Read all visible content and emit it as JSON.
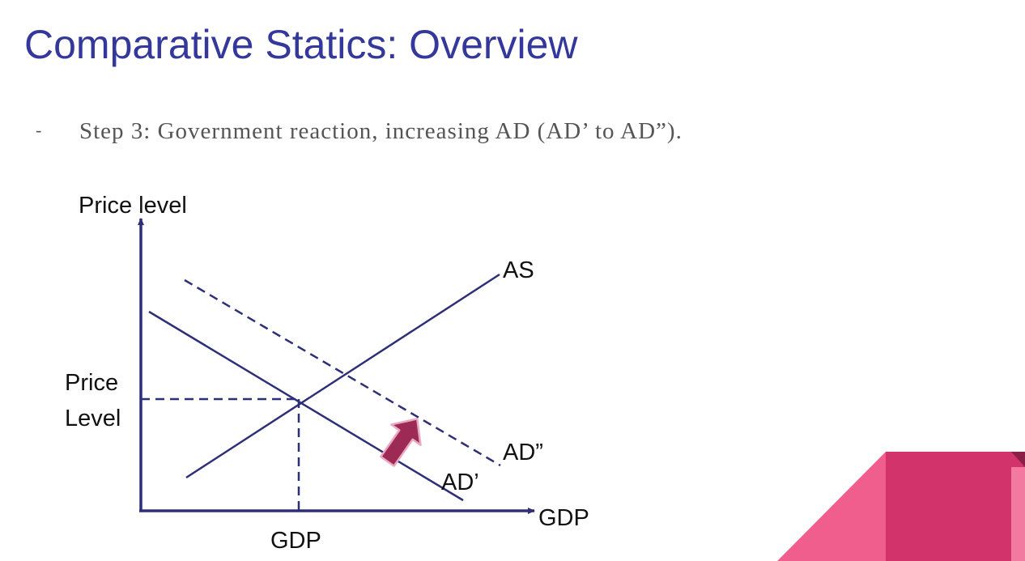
{
  "slide": {
    "title": "Comparative Statics: Overview",
    "bullet_marker": "-",
    "bullet_text": "Step 3: Government reaction, increasing AD (AD’ to AD”)."
  },
  "diagram": {
    "y_axis_label": "Price level",
    "x_axis_label": "GDP",
    "price_level_label_line1": "Price",
    "price_level_label_line2": "Level",
    "gdp_tick_label": "GDP",
    "curves": {
      "as_label": "AS",
      "ad_prime_label": "AD’",
      "ad_double_prime_label": "AD”"
    },
    "colors": {
      "axis_and_curves": "#2d2f78",
      "shift_arrow": "#9c2a55",
      "title": "#34389a"
    },
    "icons": {
      "shift_arrow": "thick-diagonal-arrow-up-right"
    }
  },
  "decoration": {
    "colors": {
      "light_pink": "#ef5e8c",
      "dark_pink": "#d1336a",
      "edge_shadow": "#8a2048"
    }
  }
}
